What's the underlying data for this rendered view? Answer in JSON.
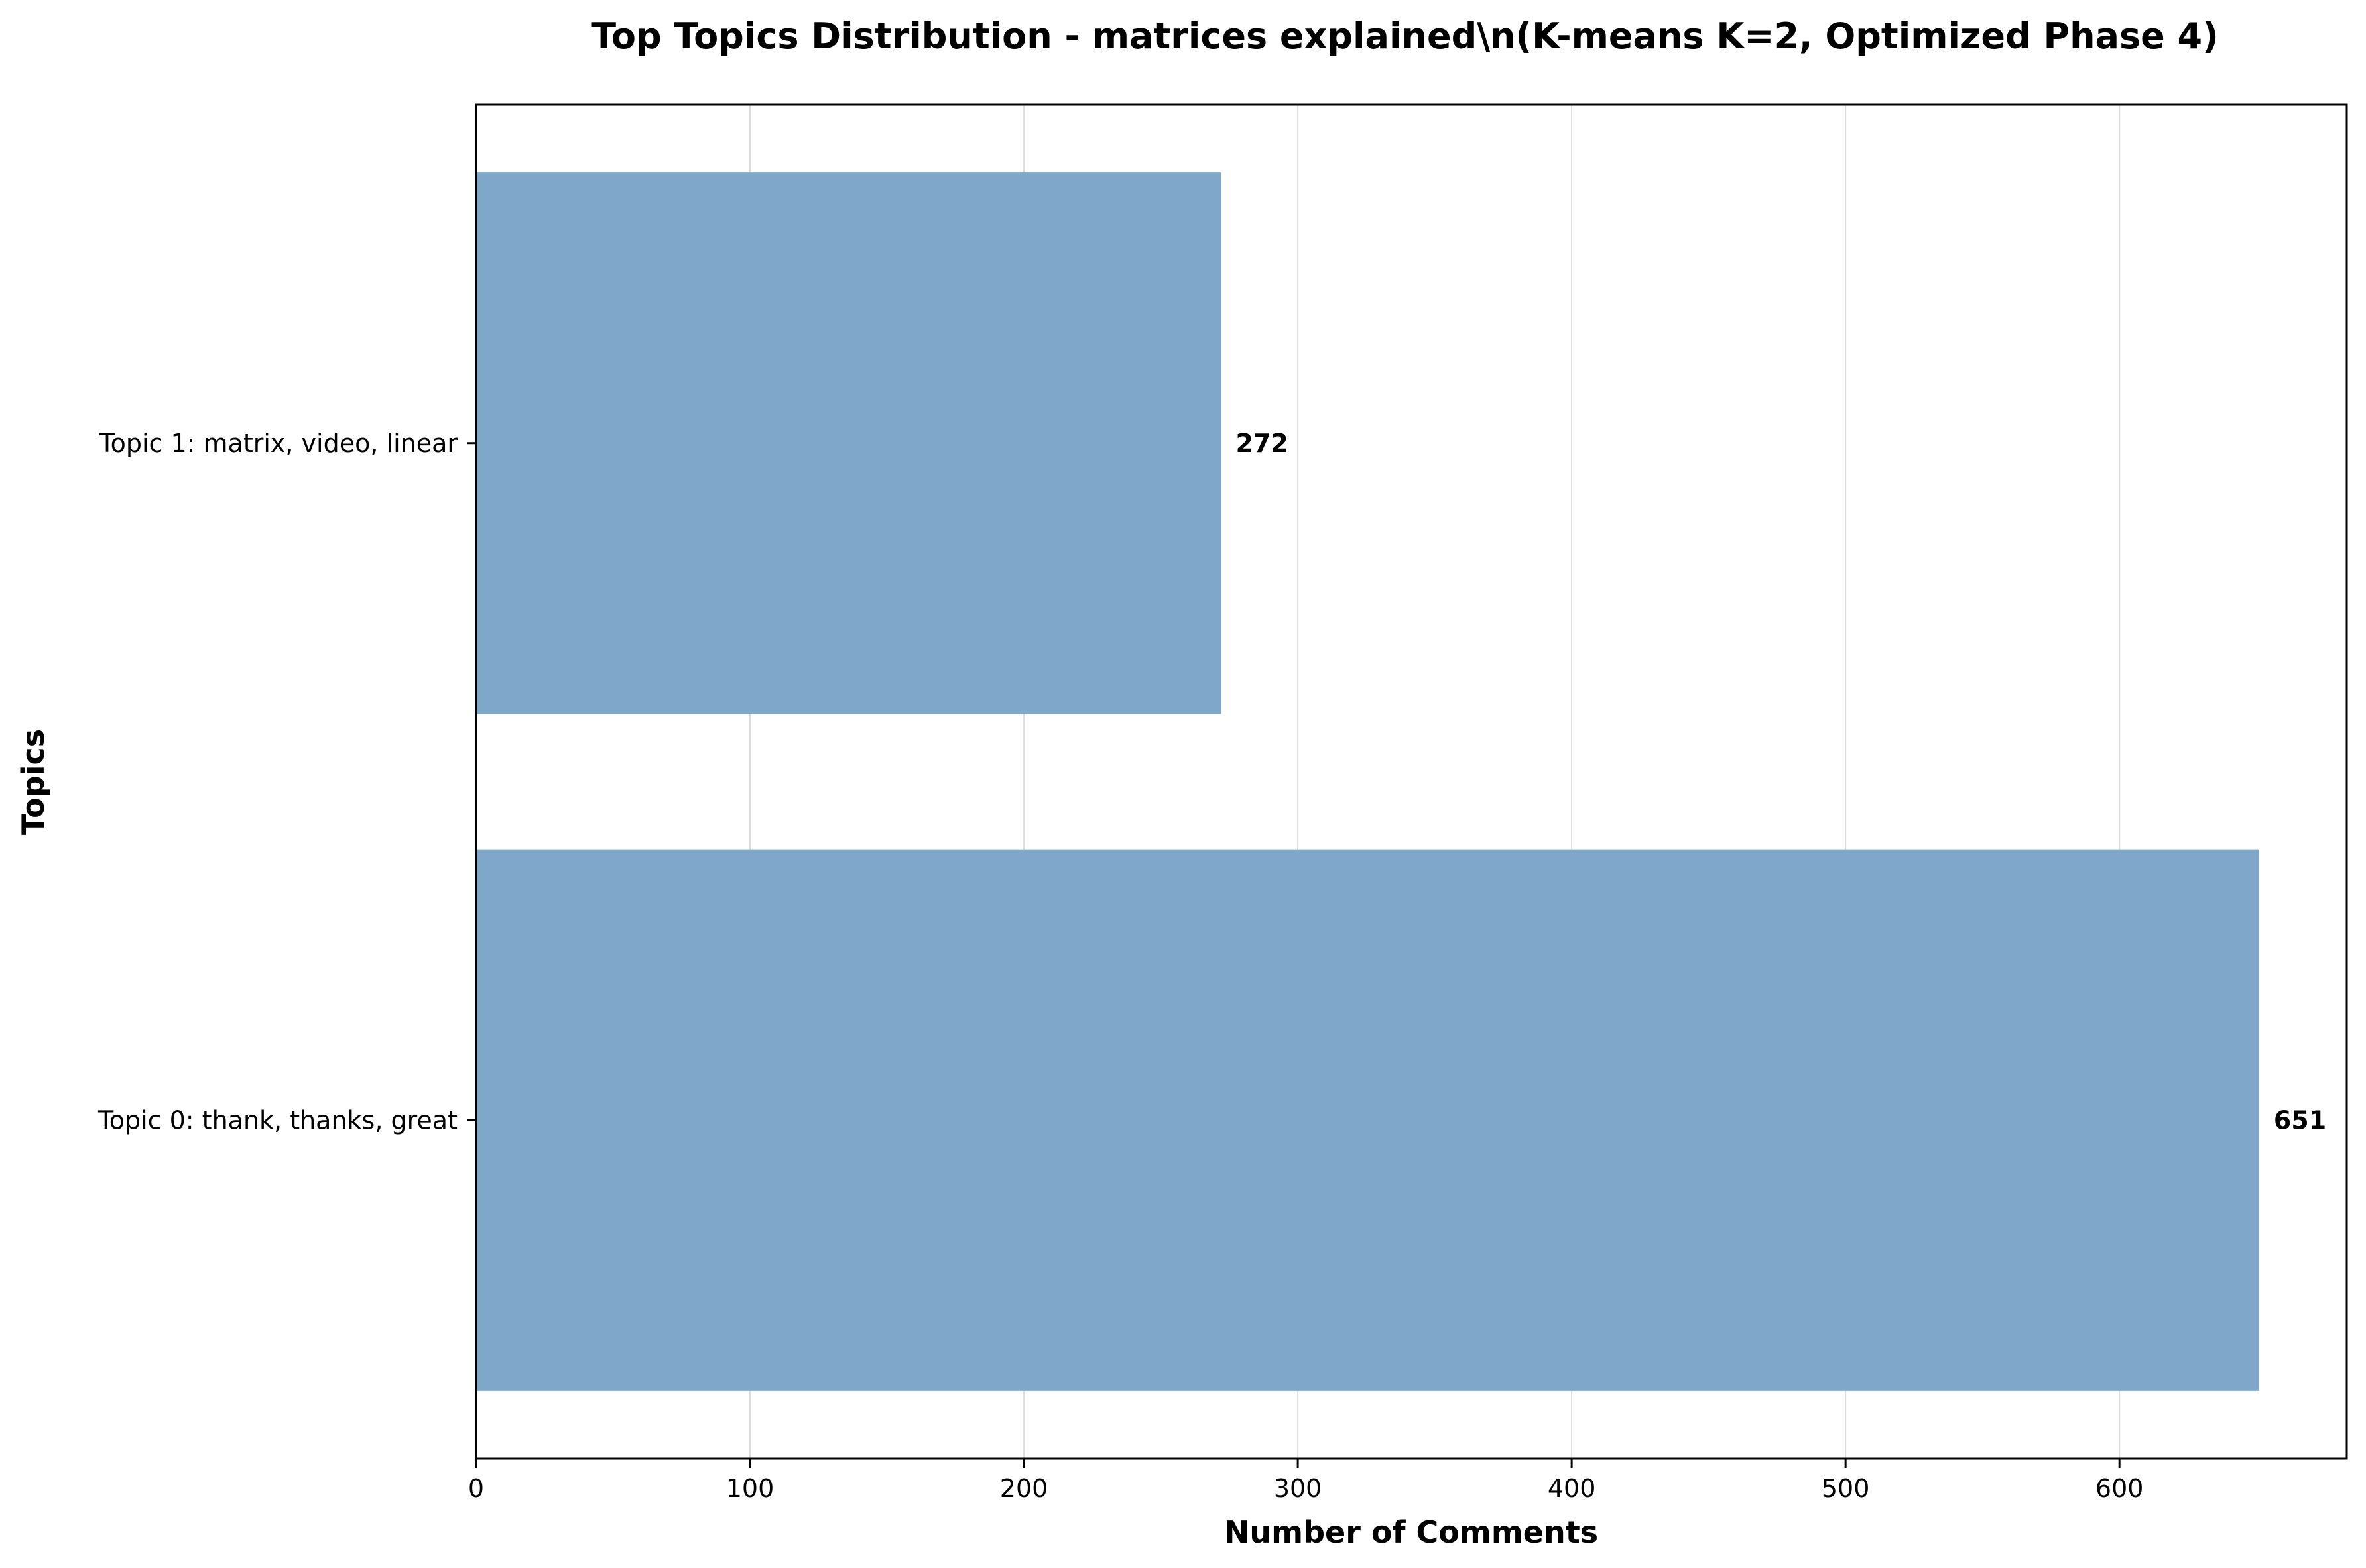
{
  "chart_data": {
    "type": "bar",
    "orientation": "horizontal",
    "title": "Top Topics Distribution - matrices explained\\n(K-means K=2, Optimized Phase 4)",
    "xlabel": "Number of Comments",
    "ylabel": "Topics",
    "categories": [
      "Topic 0: thank, thanks, great",
      "Topic 1: matrix, video, linear"
    ],
    "values": [
      651,
      272
    ],
    "data_labels": [
      "651",
      "272"
    ],
    "xlim": [
      0,
      683
    ],
    "xticks": [
      0,
      100,
      200,
      300,
      400,
      500,
      600
    ],
    "xtick_labels": [
      "0",
      "100",
      "200",
      "300",
      "400",
      "500",
      "600"
    ],
    "grid": "x-axis",
    "legend": "none",
    "bar_color": "#7ea7ca"
  }
}
